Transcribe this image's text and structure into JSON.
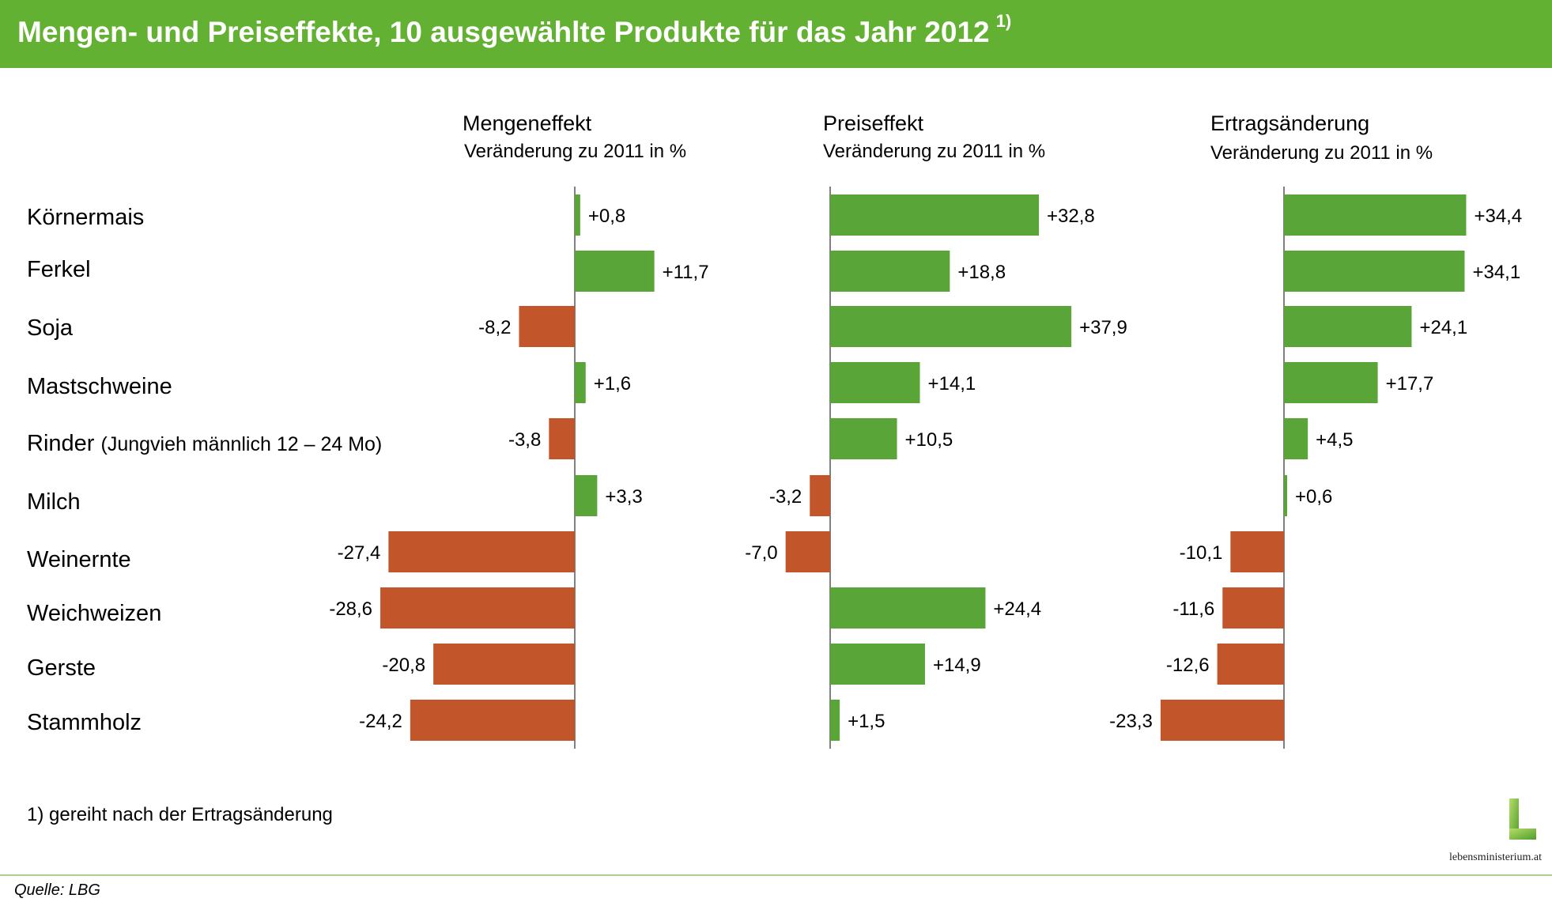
{
  "header": {
    "title": "Mengen- und Preiseffekte, 10 ausgewählte Produkte für das Jahr 2012",
    "footnote_ref": "1)"
  },
  "colors": {
    "header_bg": "#63b132",
    "positive": "#5aa537",
    "negative": "#c2552a"
  },
  "products": [
    {
      "name": "Körnermais",
      "note": ""
    },
    {
      "name": "Ferkel",
      "note": ""
    },
    {
      "name": "Soja",
      "note": ""
    },
    {
      "name": "Mastschweine",
      "note": ""
    },
    {
      "name": "Rinder",
      "note": "(Jungvieh männlich 12 – 24 Mo)"
    },
    {
      "name": "Milch",
      "note": ""
    },
    {
      "name": "Weinernte",
      "note": ""
    },
    {
      "name": "Weichweizen",
      "note": ""
    },
    {
      "name": "Gerste",
      "note": ""
    },
    {
      "name": "Stammholz",
      "note": ""
    }
  ],
  "chart_data": [
    {
      "type": "bar",
      "orientation": "horizontal",
      "title": "Mengeneffekt",
      "subtitle": "Veränderung zu 2011 in %",
      "categories": [
        "Körnermais",
        "Ferkel",
        "Soja",
        "Mastschweine",
        "Rinder",
        "Milch",
        "Weinernte",
        "Weichweizen",
        "Gerste",
        "Stammholz"
      ],
      "values": [
        0.8,
        11.7,
        -8.2,
        1.6,
        -3.8,
        3.3,
        -27.4,
        -28.6,
        -20.8,
        -24.2
      ],
      "labels": [
        "+0,8",
        "+11,7",
        "-8,2",
        "+1,6",
        "-3,8",
        "+3,3",
        "-27,4",
        "-28,6",
        "-20,8",
        "-24,2"
      ]
    },
    {
      "type": "bar",
      "orientation": "horizontal",
      "title": "Preiseffekt",
      "subtitle": "Veränderung zu 2011 in %",
      "categories": [
        "Körnermais",
        "Ferkel",
        "Soja",
        "Mastschweine",
        "Rinder",
        "Milch",
        "Weinernte",
        "Weichweizen",
        "Gerste",
        "Stammholz"
      ],
      "values": [
        32.8,
        18.8,
        37.9,
        14.1,
        10.5,
        -3.2,
        -7.0,
        24.4,
        14.9,
        1.5
      ],
      "labels": [
        "+32,8",
        "+18,8",
        "+37,9",
        "+14,1",
        "+10,5",
        "-3,2",
        "-7,0",
        "+24,4",
        "+14,9",
        "+1,5"
      ]
    },
    {
      "type": "bar",
      "orientation": "horizontal",
      "title": "Ertragsänderung",
      "subtitle": "Veränderung zu 2011 in %",
      "categories": [
        "Körnermais",
        "Ferkel",
        "Soja",
        "Mastschweine",
        "Rinder",
        "Milch",
        "Weinernte",
        "Weichweizen",
        "Gerste",
        "Stammholz"
      ],
      "values": [
        34.4,
        34.1,
        24.1,
        17.7,
        4.5,
        0.6,
        -10.1,
        -11.6,
        -12.6,
        -23.3
      ],
      "labels": [
        "+34,4",
        "+34,1",
        "+24,1",
        "+17,7",
        "+4,5",
        "+0,6",
        "-10,1",
        "-11,6",
        "-12,6",
        "-23,3"
      ]
    }
  ],
  "footnote": "1) gereiht nach der Ertragsänderung",
  "source": "Quelle: LBG",
  "logo": {
    "text": "lebensministerium.at"
  }
}
